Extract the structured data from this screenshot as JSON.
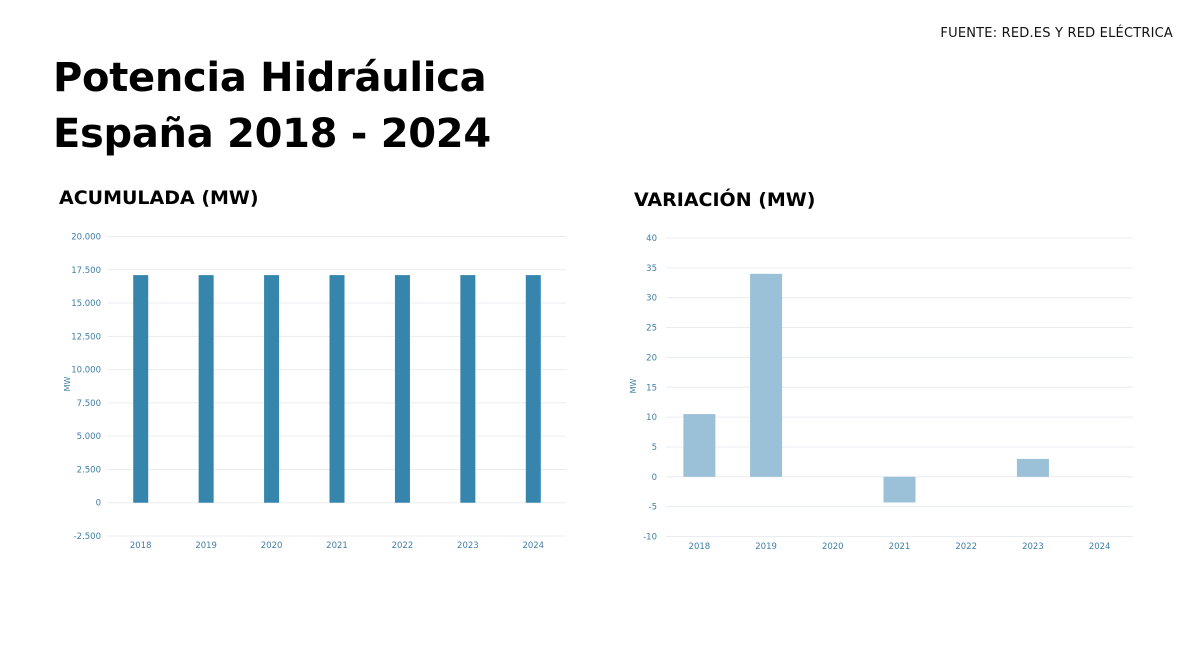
{
  "header": {
    "title_line1": "Potencia Hidráulica",
    "title_line2": "España 2018 - 2024",
    "source": "FUENTE: RED.ES Y RED ELÉCTRICA"
  },
  "left_chart": {
    "subtitle": "ACUMULADA (MW)",
    "ylabel": "MW",
    "bar_color": "#3685ad",
    "y_ticks": [
      "20.000",
      "17.500",
      "15.000",
      "12.500",
      "10.000",
      "7.500",
      "5.000",
      "2.500",
      "0",
      "-2.500"
    ]
  },
  "right_chart": {
    "subtitle": "VARIACIÓN (MW)",
    "ylabel": "MW",
    "bar_color": "#9ac1d7",
    "y_ticks": [
      "40",
      "35",
      "30",
      "25",
      "20",
      "15",
      "10",
      "5",
      "0",
      "-5",
      "-10"
    ]
  },
  "chart_data": [
    {
      "type": "bar",
      "title": "ACUMULADA (MW)",
      "xlabel": "",
      "ylabel": "MW",
      "categories": [
        "2018",
        "2019",
        "2020",
        "2021",
        "2022",
        "2023",
        "2024"
      ],
      "values": [
        17100,
        17100,
        17100,
        17100,
        17100,
        17100,
        17100
      ],
      "ylim": [
        -2500,
        20000
      ],
      "yticks": [
        -2500,
        0,
        2500,
        5000,
        7500,
        10000,
        12500,
        15000,
        17500,
        20000
      ],
      "grid": true,
      "color": "#3685ad"
    },
    {
      "type": "bar",
      "title": "VARIACIÓN (MW)",
      "xlabel": "",
      "ylabel": "MW",
      "categories": [
        "2018",
        "2019",
        "2020",
        "2021",
        "2022",
        "2023",
        "2024"
      ],
      "values": [
        10.5,
        34,
        0,
        -4.3,
        0,
        3,
        0
      ],
      "ylim": [
        -10,
        40
      ],
      "yticks": [
        -10,
        -5,
        0,
        5,
        10,
        15,
        20,
        25,
        30,
        35,
        40
      ],
      "grid": true,
      "color": "#9ac1d7"
    }
  ]
}
